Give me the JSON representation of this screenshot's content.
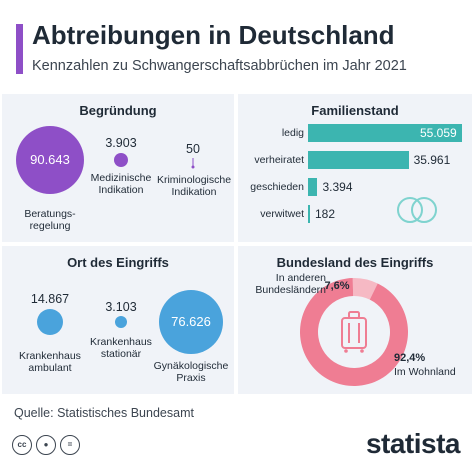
{
  "header": {
    "title": "Abtreibungen in Deutschland",
    "subtitle": "Kennzahlen zu Schwangerschaftsabbrüchen im Jahr 2021"
  },
  "colors": {
    "accent_purple": "#8e4fc7",
    "teal": "#3cb5b0",
    "blue": "#4aa3dc",
    "pink": "#ef7d93",
    "pink_light": "#f6b9c4",
    "panel_bg": "#f0f3f8"
  },
  "chart_data": [
    {
      "type": "bubble",
      "title": "Begründung",
      "series": [
        {
          "label": "Beratungs-\nregelung",
          "value": 90643,
          "display": "90.643"
        },
        {
          "label": "Medizinische\nIndikation",
          "value": 3903,
          "display": "3.903"
        },
        {
          "label": "Kriminologische\nIndikation",
          "value": 50,
          "display": "50"
        }
      ]
    },
    {
      "type": "bar",
      "title": "Familienstand",
      "categories": [
        "ledig",
        "verheiratet",
        "geschieden",
        "verwitwet"
      ],
      "values": [
        55059,
        35961,
        3394,
        182
      ],
      "display": [
        "55.059",
        "35.961",
        "3.394",
        "182"
      ]
    },
    {
      "type": "bubble",
      "title": "Ort des Eingriffs",
      "series": [
        {
          "label": "Krankenhaus\nambulant",
          "value": 14867,
          "display": "14.867"
        },
        {
          "label": "Krankenhaus\nstationär",
          "value": 3103,
          "display": "3.103"
        },
        {
          "label": "Gynäkologische\nPraxis",
          "value": 76626,
          "display": "76.626"
        }
      ]
    },
    {
      "type": "pie",
      "title": "Bundesland des Eingriffs",
      "slices": [
        {
          "label": "Im Wohnland",
          "value": 92.4,
          "display": "92,4%"
        },
        {
          "label": "In anderen\nBundesländern",
          "value": 7.6,
          "display": "7,6%"
        }
      ]
    }
  ],
  "footer": {
    "source": "Quelle: Statistisches Bundesamt",
    "brand": "statista",
    "license_icons": [
      "cc",
      "person",
      "equals"
    ]
  }
}
